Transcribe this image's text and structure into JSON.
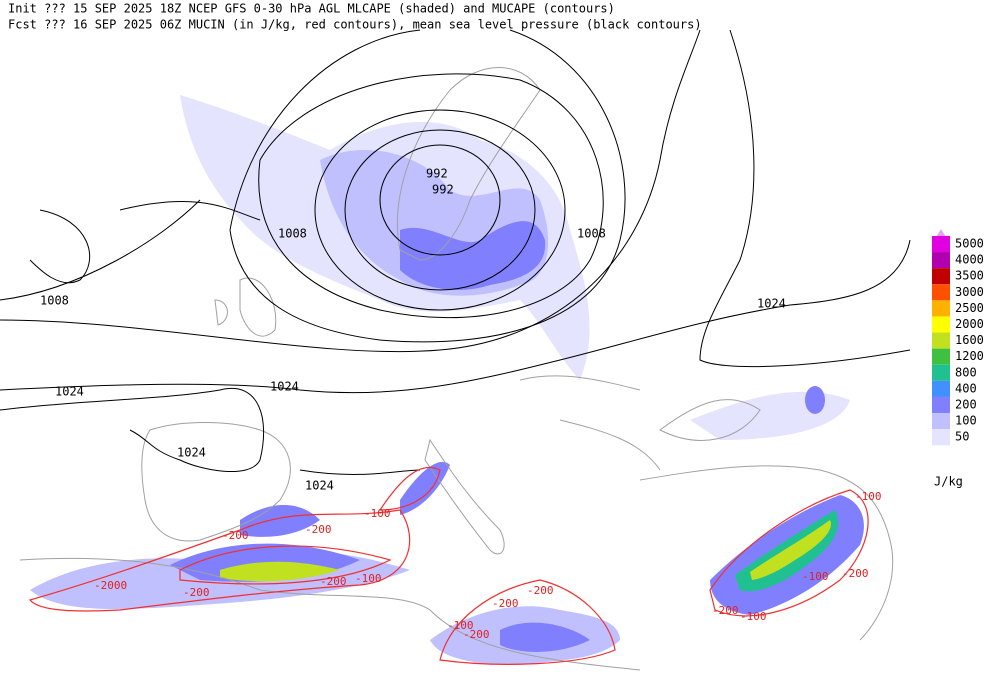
{
  "header": {
    "line1": "Init  ??? 15 SEP 2025 18Z  NCEP GFS 0-30 hPa AGL MLCAPE (shaded) and MUCAPE (contours)",
    "line2": "Fcst ??? 16 SEP 2025 06Z  MUCIN (in J/kg, red contours), mean sea level pressure (black contours)"
  },
  "isobar_labels": [
    "992",
    "992",
    "1008",
    "1008",
    "1008",
    "1024",
    "1024",
    "1024",
    "1024",
    "1024"
  ],
  "cin_labels": [
    "-100",
    "-200",
    "-200",
    "-2000",
    "-200",
    "-200",
    "-100",
    "-200",
    "-200",
    "-200",
    "-100",
    "-100",
    "-100",
    "-200",
    "-200",
    "-100"
  ],
  "legend": {
    "unit": "J/kg",
    "entries": [
      {
        "label": "5000",
        "color": "#e000e0"
      },
      {
        "label": "4000",
        "color": "#b000b0"
      },
      {
        "label": "3500",
        "color": "#c00000"
      },
      {
        "label": "3000",
        "color": "#ff5000"
      },
      {
        "label": "2500",
        "color": "#ffb000"
      },
      {
        "label": "2000",
        "color": "#ffff00"
      },
      {
        "label": "1600",
        "color": "#c0e020"
      },
      {
        "label": "1200",
        "color": "#40c040"
      },
      {
        "label": "800",
        "color": "#20c090"
      },
      {
        "label": "400",
        "color": "#4090ff"
      },
      {
        "label": "200",
        "color": "#8080ff"
      },
      {
        "label": "100",
        "color": "#c0c0ff"
      },
      {
        "label": "50",
        "color": "#e4e4ff"
      }
    ]
  }
}
